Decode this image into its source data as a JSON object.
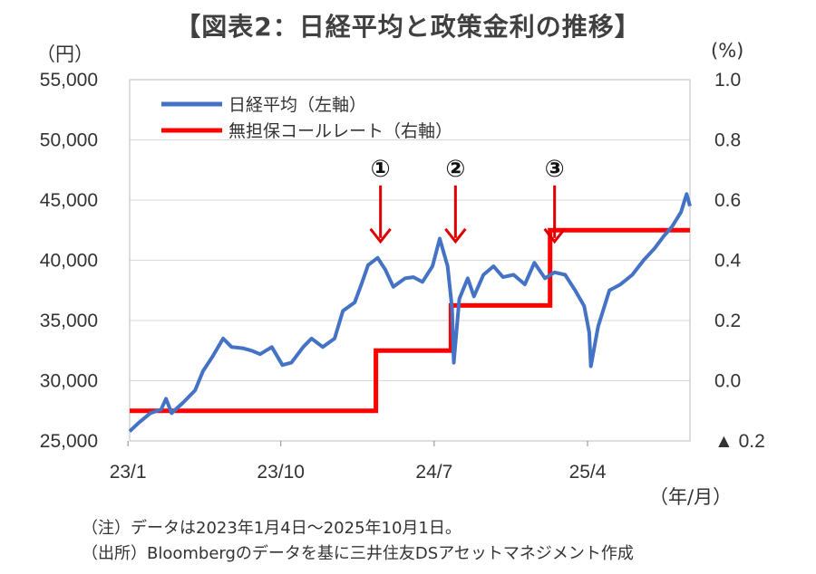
{
  "chart_data": {
    "type": "line",
    "title": "【図表2：日経平均と政策金利の推移】",
    "left_axis": {
      "unit": "（円）",
      "ylim": [
        25000,
        55000
      ],
      "ticks": [
        25000,
        30000,
        35000,
        40000,
        45000,
        50000,
        55000
      ],
      "tick_labels": [
        "25,000",
        "30,000",
        "35,000",
        "40,000",
        "45,000",
        "50,000",
        "55,000"
      ]
    },
    "right_axis": {
      "unit": "(%)",
      "ylim": [
        -0.2,
        1.0
      ],
      "ticks": [
        -0.2,
        0.0,
        0.2,
        0.4,
        0.6,
        0.8,
        1.0
      ],
      "tick_labels": [
        "▲ 0.2",
        "0.0",
        "0.2",
        "0.4",
        "0.6",
        "0.8",
        "1.0"
      ]
    },
    "x_axis": {
      "unit": "（年/月）",
      "ticks": [
        {
          "label": "23/1",
          "date": "2023-01"
        },
        {
          "label": "23/10",
          "date": "2023-10"
        },
        {
          "label": "24/7",
          "date": "2024-07"
        },
        {
          "label": "25/4",
          "date": "2025-04"
        }
      ]
    },
    "grid": true,
    "legend_position": "top-left",
    "series": [
      {
        "name": "日経平均（左軸）",
        "axis": "left",
        "color": "#4472C4",
        "x": [
          "2023-01-04",
          "2023-01-20",
          "2023-02-10",
          "2023-03-01",
          "2023-03-10",
          "2023-03-20",
          "2023-04-10",
          "2023-05-01",
          "2023-05-15",
          "2023-06-01",
          "2023-06-20",
          "2023-07-05",
          "2023-07-25",
          "2023-08-10",
          "2023-08-25",
          "2023-09-15",
          "2023-10-04",
          "2023-10-20",
          "2023-11-10",
          "2023-11-25",
          "2023-12-15",
          "2024-01-05",
          "2024-01-20",
          "2024-02-10",
          "2024-02-22",
          "2024-03-05",
          "2024-03-22",
          "2024-04-05",
          "2024-04-19",
          "2024-05-10",
          "2024-05-25",
          "2024-06-10",
          "2024-06-28",
          "2024-07-11",
          "2024-07-25",
          "2024-08-02",
          "2024-08-05",
          "2024-08-15",
          "2024-08-30",
          "2024-09-10",
          "2024-09-27",
          "2024-10-15",
          "2024-11-01",
          "2024-11-20",
          "2024-12-10",
          "2024-12-27",
          "2025-01-15",
          "2025-02-01",
          "2025-02-20",
          "2025-03-10",
          "2025-03-26",
          "2025-04-04",
          "2025-04-07",
          "2025-04-20",
          "2025-05-10",
          "2025-05-30",
          "2025-06-20",
          "2025-07-10",
          "2025-07-30",
          "2025-08-15",
          "2025-08-30",
          "2025-09-15",
          "2025-09-25",
          "2025-10-01"
        ],
        "values": [
          25800,
          26500,
          27300,
          27600,
          28500,
          27300,
          28200,
          29200,
          30800,
          32000,
          33500,
          32800,
          32700,
          32500,
          32200,
          32800,
          31300,
          31500,
          32800,
          33500,
          32800,
          33500,
          35800,
          36500,
          38000,
          39600,
          40200,
          39200,
          37800,
          38500,
          38600,
          38200,
          39500,
          41800,
          39500,
          36000,
          31500,
          36800,
          38500,
          37000,
          38800,
          39500,
          38600,
          38800,
          38000,
          39800,
          38500,
          39000,
          38800,
          37500,
          36200,
          34000,
          31200,
          34500,
          37500,
          38000,
          38800,
          40000,
          41000,
          42000,
          42800,
          44000,
          45500,
          44500
        ]
      },
      {
        "name": "無担保コールレート（右軸）",
        "axis": "right",
        "color": "#FF0000",
        "x": [
          "2023-01-04",
          "2024-03-19",
          "2024-03-19",
          "2024-07-31",
          "2024-07-31",
          "2025-01-24",
          "2025-01-24",
          "2025-10-01"
        ],
        "values": [
          -0.1,
          -0.1,
          0.1,
          0.1,
          0.25,
          0.25,
          0.5,
          0.5
        ]
      }
    ],
    "annotations": [
      {
        "label": "①",
        "date": "2024-03-19"
      },
      {
        "label": "②",
        "date": "2024-07-31"
      },
      {
        "label": "③",
        "date": "2025-01-24"
      }
    ]
  },
  "notes": [
    "（注）データは2023年1月4日～2025年10月1日。",
    "（出所）Bloombergのデータを基に三井住友DSアセットマネジメント作成"
  ]
}
